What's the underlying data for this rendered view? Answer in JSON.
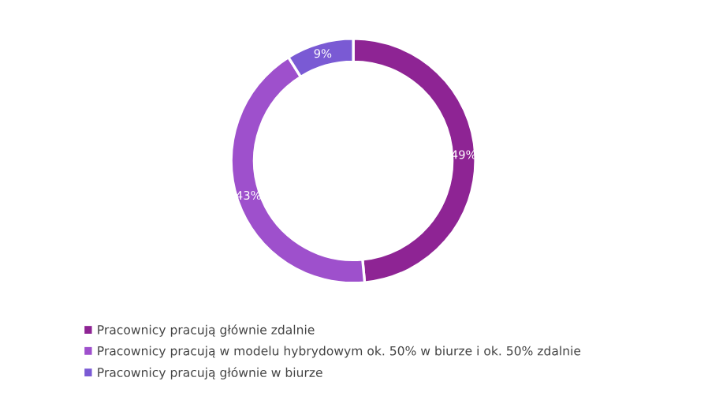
{
  "chart_data": {
    "type": "donut",
    "categories": [
      "Pracownicy pracują głównie zdalnie",
      "Pracownicy pracują w modelu hybrydowym ok. 50% w biurze i ok. 50% zdalnie",
      "Pracownicy pracują głównie w biurze"
    ],
    "values": [
      49,
      43,
      9
    ],
    "colors": [
      "#8e2494",
      "#9e50cc",
      "#7a5ad4"
    ],
    "value_labels": [
      "49%",
      "43%",
      "9%"
    ],
    "legend": "bottom"
  }
}
